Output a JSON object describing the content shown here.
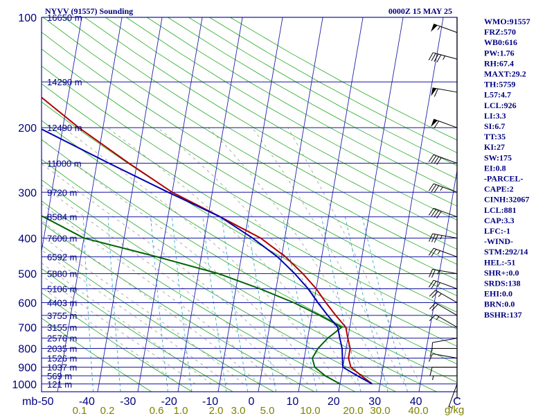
{
  "chart_data": {
    "type": "line",
    "title": "NYVV (91557) Sounding",
    "datetime": "0000Z 15 MAY 25",
    "y_unit_label": "mb",
    "mixing_unit_label": "g/kg",
    "pressure_levels": [
      100,
      200,
      300,
      400,
      500,
      600,
      700,
      800,
      900,
      1000
    ],
    "temp_ticks": [
      "-50",
      "-40",
      "-30",
      "-20",
      "-10",
      "0",
      "10",
      "20",
      "30",
      "40",
      "C"
    ],
    "mixing_ticks": [
      "0.1",
      "0.2",
      "0.6",
      "1.0",
      "2.0",
      "3.0",
      "5.0",
      "10.0",
      "20.0",
      "30.0",
      "40.0"
    ],
    "heights": [
      {
        "label": "16650 m",
        "p": 100
      },
      {
        "label": "14290 m",
        "p": 150
      },
      {
        "label": "12490 m",
        "p": 200
      },
      {
        "label": "11000 m",
        "p": 250
      },
      {
        "label": "9720 m",
        "p": 300
      },
      {
        "label": "8584 m",
        "p": 350
      },
      {
        "label": "7600 m",
        "p": 400
      },
      {
        "label": "6592 m",
        "p": 450
      },
      {
        "label": "5880 m",
        "p": 500
      },
      {
        "label": "5106 m",
        "p": 550
      },
      {
        "label": "4403 m",
        "p": 600
      },
      {
        "label": "3755 m",
        "p": 650
      },
      {
        "label": "3155 m",
        "p": 700
      },
      {
        "label": "2576 m",
        "p": 750
      },
      {
        "label": "2035 m",
        "p": 800
      },
      {
        "label": "1526 m",
        "p": 850
      },
      {
        "label": "1037 m",
        "p": 900
      },
      {
        "label": "569 m",
        "p": 950
      },
      {
        "label": "121 m",
        "p": 1000
      }
    ],
    "series": [
      {
        "color": "#b00000",
        "points": [
          [
            100,
            -82
          ],
          [
            150,
            -72
          ],
          [
            200,
            -56
          ],
          [
            250,
            -42
          ],
          [
            300,
            -30
          ],
          [
            350,
            -17
          ],
          [
            400,
            -6
          ],
          [
            450,
            1
          ],
          [
            500,
            6
          ],
          [
            550,
            10
          ],
          [
            600,
            13
          ],
          [
            650,
            16
          ],
          [
            700,
            19
          ],
          [
            750,
            20
          ],
          [
            800,
            21
          ],
          [
            850,
            21
          ],
          [
            900,
            22
          ],
          [
            950,
            25
          ],
          [
            1000,
            28
          ]
        ]
      },
      {
        "color": "#006400",
        "points": [
          [
            100,
            -93
          ],
          [
            150,
            -110
          ],
          [
            200,
            -100
          ],
          [
            250,
            -93
          ],
          [
            300,
            -77
          ],
          [
            350,
            -61
          ],
          [
            400,
            -50
          ],
          [
            450,
            -31
          ],
          [
            500,
            -15
          ],
          [
            550,
            -4
          ],
          [
            600,
            5
          ],
          [
            650,
            12
          ],
          [
            700,
            18
          ],
          [
            750,
            15
          ],
          [
            800,
            13
          ],
          [
            850,
            12
          ],
          [
            900,
            13
          ],
          [
            950,
            16
          ],
          [
            1000,
            20
          ]
        ]
      },
      {
        "color": "#0000b0",
        "points": [
          [
            100,
            -102
          ],
          [
            150,
            -88
          ],
          [
            200,
            -66
          ],
          [
            250,
            -47
          ],
          [
            300,
            -31
          ],
          [
            350,
            -17
          ],
          [
            400,
            -8
          ],
          [
            450,
            -1
          ],
          [
            500,
            4
          ],
          [
            550,
            8
          ],
          [
            600,
            11
          ],
          [
            650,
            14
          ],
          [
            700,
            17
          ],
          [
            750,
            18
          ],
          [
            800,
            19
          ],
          [
            850,
            19.5
          ],
          [
            900,
            20
          ],
          [
            950,
            24
          ],
          [
            1000,
            28
          ]
        ]
      }
    ],
    "wind_barbs": [
      {
        "p": 110,
        "dir": 290,
        "spd": 55
      },
      {
        "p": 130,
        "dir": 285,
        "spd": 45
      },
      {
        "p": 160,
        "dir": 280,
        "spd": 60
      },
      {
        "p": 200,
        "dir": 290,
        "spd": 60
      },
      {
        "p": 250,
        "dir": 290,
        "spd": 40
      },
      {
        "p": 300,
        "dir": 290,
        "spd": 35
      },
      {
        "p": 350,
        "dir": 290,
        "spd": 40
      },
      {
        "p": 400,
        "dir": 280,
        "spd": 35
      },
      {
        "p": 450,
        "dir": 290,
        "spd": 25
      },
      {
        "p": 500,
        "dir": 280,
        "spd": 25
      },
      {
        "p": 550,
        "dir": 290,
        "spd": 25
      },
      {
        "p": 600,
        "dir": 300,
        "spd": 25
      },
      {
        "p": 650,
        "dir": 300,
        "spd": 20
      },
      {
        "p": 700,
        "dir": 300,
        "spd": 15
      },
      {
        "p": 750,
        "dir": 260,
        "spd": 10
      },
      {
        "p": 800,
        "dir": 270,
        "spd": 10
      },
      {
        "p": 850,
        "dir": 280,
        "spd": 10
      },
      {
        "p": 900,
        "dir": 270,
        "spd": 10
      },
      {
        "p": 950,
        "dir": 270,
        "spd": 5
      },
      {
        "p": 1000,
        "dir": 200,
        "spd": 5
      }
    ],
    "indices": [
      "WMO:91557",
      "FRZ:570",
      "WB0:616",
      "PW:1.76",
      "RH:67.4",
      "MAXT:29.2",
      "TH:5759",
      "L57:4.7",
      "LCL:926",
      "LI:3.3",
      "SI:6.7",
      "TT:35",
      "KI:27",
      "SW:175",
      "EI:0.8",
      "-PARCEL-",
      "CAPE:2",
      "CINH:32067",
      "LCL:881",
      "CAP:3.3",
      "LFC:-1",
      "-WIND-",
      "STM:292/14",
      "HEL:-51",
      "SHR+:0.0",
      "SRDS:138",
      "EHI:0.0",
      "BRN:0.0",
      "BSHR:137"
    ]
  }
}
